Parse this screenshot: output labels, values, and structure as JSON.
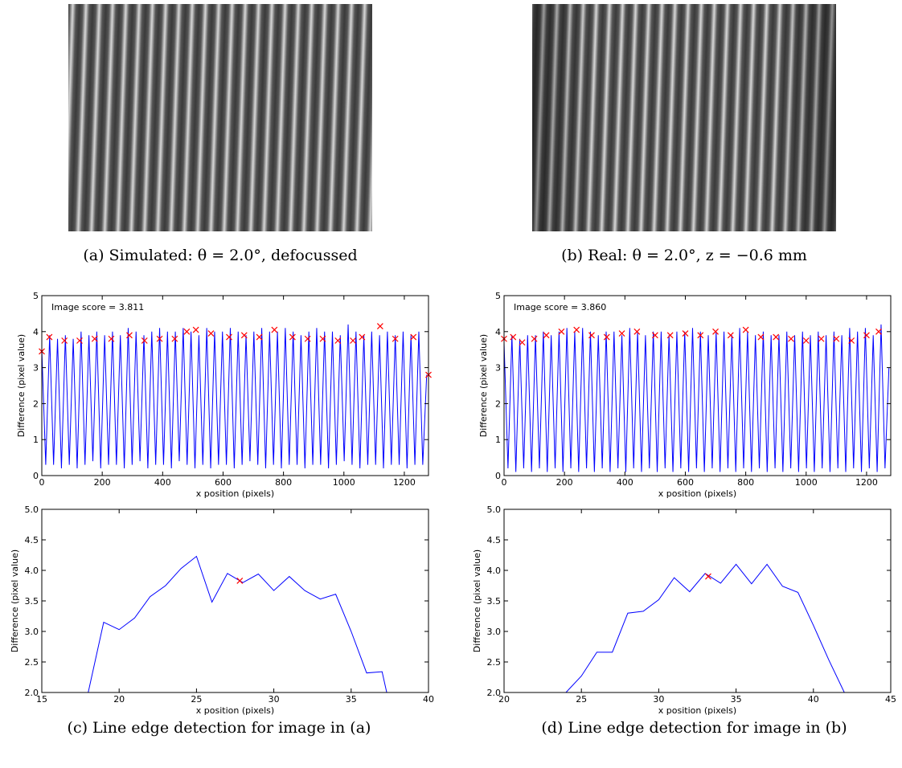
{
  "images": [
    {
      "caption": "(a) Simulated: θ = 2.0°, defocussed"
    },
    {
      "caption": "(b) Real: θ = 2.0°, z = −0.6 mm"
    }
  ],
  "chart_data": [
    {
      "type": "line",
      "caption": "(c) Line edge detection for image in (a)",
      "annotation": "Image score = 3.811",
      "xlabel": "x position (pixels)",
      "ylabel": "Difference (pixel value)",
      "xlim": [
        0,
        1280
      ],
      "ylim": [
        0,
        5
      ],
      "xticks": [
        0,
        200,
        400,
        600,
        800,
        1000,
        1200
      ],
      "yticks": [
        0,
        1,
        2,
        3,
        4,
        5
      ],
      "series": [
        {
          "color": "#0000ff",
          "marker": "none",
          "x": [
            0,
            13,
            26,
            39,
            52,
            65,
            78,
            91,
            104,
            117,
            130,
            143,
            156,
            169,
            182,
            195,
            208,
            221,
            234,
            247,
            260,
            273,
            286,
            299,
            312,
            325,
            338,
            351,
            364,
            377,
            390,
            403,
            416,
            429,
            442,
            455,
            468,
            481,
            494,
            507,
            520,
            533,
            546,
            559,
            572,
            585,
            598,
            611,
            624,
            637,
            650,
            663,
            676,
            689,
            702,
            715,
            728,
            741,
            754,
            767,
            780,
            793,
            806,
            819,
            832,
            845,
            858,
            871,
            884,
            897,
            910,
            923,
            936,
            949,
            962,
            975,
            988,
            1001,
            1014,
            1027,
            1040,
            1053,
            1066,
            1079,
            1092,
            1105,
            1118,
            1131,
            1144,
            1157,
            1170,
            1183,
            1196,
            1209,
            1222,
            1235,
            1248,
            1261,
            1274
          ],
          "values": [
            3.5,
            0.3,
            3.9,
            0.3,
            3.8,
            0.2,
            3.9,
            0.3,
            3.8,
            0.2,
            4.0,
            0.3,
            3.9,
            0.4,
            4.0,
            0.2,
            3.9,
            0.3,
            4.0,
            0.3,
            3.9,
            0.2,
            4.1,
            0.3,
            4.0,
            0.4,
            3.9,
            0.2,
            4.0,
            0.3,
            4.1,
            0.3,
            4.0,
            0.2,
            4.0,
            0.4,
            4.1,
            0.3,
            4.0,
            0.2,
            3.9,
            0.3,
            4.1,
            0.2,
            4.0,
            0.3,
            4.0,
            0.3,
            4.1,
            0.2,
            4.0,
            0.3,
            3.9,
            0.4,
            4.0,
            0.3,
            4.1,
            0.2,
            4.0,
            0.3,
            4.0,
            0.2,
            4.1,
            0.3,
            4.0,
            0.3,
            3.9,
            0.2,
            4.0,
            0.3,
            4.1,
            0.3,
            4.0,
            0.2,
            4.0,
            0.3,
            3.9,
            0.4,
            4.2,
            0.3,
            4.0,
            0.2,
            3.9,
            0.3,
            4.0,
            0.3,
            3.9,
            0.2,
            4.0,
            0.3,
            3.9,
            0.3,
            4.0,
            0.2,
            3.9,
            0.3,
            4.0,
            0.3,
            2.8
          ]
        },
        {
          "color": "#ff0000",
          "marker": "x",
          "x": [
            0,
            25,
            75,
            125,
            175,
            230,
            290,
            340,
            390,
            440,
            480,
            510,
            560,
            620,
            670,
            720,
            770,
            830,
            880,
            930,
            980,
            1030,
            1060,
            1120,
            1170,
            1230,
            1280
          ],
          "values": [
            3.45,
            3.85,
            3.75,
            3.75,
            3.8,
            3.8,
            3.9,
            3.75,
            3.8,
            3.8,
            4.0,
            4.05,
            3.95,
            3.85,
            3.9,
            3.85,
            4.05,
            3.85,
            3.8,
            3.8,
            3.75,
            3.75,
            3.85,
            4.15,
            3.8,
            3.85,
            2.8
          ]
        }
      ]
    },
    {
      "type": "line",
      "caption": "(d) Line edge detection for image in (b)",
      "annotation": "Image score = 3.860",
      "xlabel": "x position (pixels)",
      "ylabel": "Difference (pixel value)",
      "xlim": [
        0,
        1280
      ],
      "ylim": [
        0,
        5
      ],
      "xticks": [
        0,
        200,
        400,
        600,
        800,
        1000,
        1200
      ],
      "yticks": [
        0,
        1,
        2,
        3,
        4,
        5
      ],
      "series": [
        {
          "color": "#0000ff",
          "marker": "none",
          "x": [
            0,
            13,
            26,
            39,
            52,
            65,
            78,
            91,
            104,
            117,
            130,
            143,
            156,
            169,
            182,
            195,
            208,
            221,
            234,
            247,
            260,
            273,
            286,
            299,
            312,
            325,
            338,
            351,
            364,
            377,
            390,
            403,
            416,
            429,
            442,
            455,
            468,
            481,
            494,
            507,
            520,
            533,
            546,
            559,
            572,
            585,
            598,
            611,
            624,
            637,
            650,
            663,
            676,
            689,
            702,
            715,
            728,
            741,
            754,
            767,
            780,
            793,
            806,
            819,
            832,
            845,
            858,
            871,
            884,
            897,
            910,
            923,
            936,
            949,
            962,
            975,
            988,
            1001,
            1014,
            1027,
            1040,
            1053,
            1066,
            1079,
            1092,
            1105,
            1118,
            1131,
            1144,
            1157,
            1170,
            1183,
            1196,
            1209,
            1222,
            1235,
            1248,
            1261,
            1274
          ],
          "values": [
            3.7,
            0.2,
            3.9,
            0.1,
            3.8,
            0.2,
            3.9,
            0.1,
            3.9,
            0.2,
            4.0,
            0.1,
            3.9,
            0.2,
            4.0,
            0.1,
            4.1,
            0.2,
            4.0,
            0.1,
            4.1,
            0.2,
            4.0,
            0.1,
            3.9,
            0.2,
            4.0,
            0.1,
            4.0,
            0.2,
            3.9,
            0.1,
            4.1,
            0.2,
            4.0,
            0.1,
            3.9,
            0.2,
            4.0,
            0.1,
            4.0,
            0.2,
            3.9,
            0.1,
            4.0,
            0.2,
            4.0,
            0.1,
            4.1,
            0.2,
            4.0,
            0.1,
            3.9,
            0.2,
            4.0,
            0.1,
            4.0,
            0.2,
            3.9,
            0.1,
            4.1,
            0.2,
            4.0,
            0.1,
            3.9,
            0.2,
            4.0,
            0.1,
            3.9,
            0.2,
            3.9,
            0.1,
            4.0,
            0.2,
            3.9,
            0.1,
            4.0,
            0.2,
            3.9,
            0.1,
            4.0,
            0.2,
            3.9,
            0.1,
            4.0,
            0.2,
            3.9,
            0.1,
            4.1,
            0.2,
            4.0,
            0.1,
            4.1,
            0.2,
            3.9,
            0.1,
            4.2,
            0.2,
            3.0
          ]
        },
        {
          "color": "#ff0000",
          "marker": "x",
          "x": [
            0,
            30,
            60,
            100,
            140,
            190,
            240,
            290,
            340,
            390,
            440,
            500,
            550,
            600,
            650,
            700,
            750,
            800,
            850,
            900,
            950,
            1000,
            1050,
            1100,
            1150,
            1200,
            1240
          ],
          "values": [
            3.8,
            3.85,
            3.7,
            3.8,
            3.9,
            4.0,
            4.05,
            3.9,
            3.85,
            3.95,
            4.0,
            3.9,
            3.9,
            3.95,
            3.9,
            4.0,
            3.9,
            4.05,
            3.85,
            3.85,
            3.8,
            3.75,
            3.8,
            3.8,
            3.75,
            3.9,
            4.0
          ]
        }
      ]
    },
    {
      "type": "line",
      "xlabel": "x position (pixels)",
      "ylabel": "Difference (pixel value)",
      "xlim": [
        15,
        40
      ],
      "ylim": [
        2,
        5
      ],
      "xticks": [
        15,
        20,
        25,
        30,
        35,
        40
      ],
      "yticks": [
        {
          "value": 2,
          "label": "2.0"
        },
        {
          "value": 2.5,
          "label": "2.5"
        },
        {
          "value": 3,
          "label": "3.0"
        },
        {
          "value": 3.5,
          "label": "3.5"
        },
        {
          "value": 4,
          "label": "4.0"
        },
        {
          "value": 4.5,
          "label": "4.5"
        },
        {
          "value": 5,
          "label": "5.0"
        }
      ],
      "series": [
        {
          "color": "#0000ff",
          "marker": "none",
          "x": [
            18,
            19,
            20,
            21,
            22,
            23,
            24,
            25,
            26,
            27,
            28,
            29,
            30,
            31,
            32,
            33,
            34,
            35,
            36,
            37,
            37.3
          ],
          "values": [
            2.0,
            3.15,
            3.03,
            3.22,
            3.57,
            3.75,
            4.03,
            4.23,
            3.48,
            3.95,
            3.8,
            3.94,
            3.67,
            3.9,
            3.67,
            3.53,
            3.61,
            3.0,
            2.32,
            2.34,
            2.0
          ]
        },
        {
          "color": "#ff0000",
          "marker": "x",
          "x": [
            27.8
          ],
          "values": [
            3.83
          ]
        }
      ]
    },
    {
      "type": "line",
      "xlabel": "x position (pixels)",
      "ylabel": "Difference (pixel value)",
      "xlim": [
        20,
        45
      ],
      "ylim": [
        2,
        5
      ],
      "xticks": [
        20,
        25,
        30,
        35,
        40,
        45
      ],
      "yticks": [
        {
          "value": 2,
          "label": "2.0"
        },
        {
          "value": 2.5,
          "label": "2.5"
        },
        {
          "value": 3,
          "label": "3.0"
        },
        {
          "value": 3.5,
          "label": "3.5"
        },
        {
          "value": 4,
          "label": "4.0"
        },
        {
          "value": 4.5,
          "label": "4.5"
        },
        {
          "value": 5,
          "label": "5.0"
        }
      ],
      "series": [
        {
          "color": "#0000ff",
          "marker": "none",
          "x": [
            24,
            25,
            26,
            27,
            28,
            29,
            30,
            31,
            32,
            33,
            34,
            35,
            36,
            37,
            38,
            39,
            40,
            41,
            42
          ],
          "values": [
            2.0,
            2.27,
            2.66,
            2.66,
            3.3,
            3.33,
            3.52,
            3.88,
            3.65,
            3.95,
            3.79,
            4.1,
            3.78,
            4.1,
            3.74,
            3.64,
            3.1,
            2.53,
            2.0
          ]
        },
        {
          "color": "#ff0000",
          "marker": "x",
          "x": [
            33.2
          ],
          "values": [
            3.9
          ]
        }
      ]
    }
  ]
}
